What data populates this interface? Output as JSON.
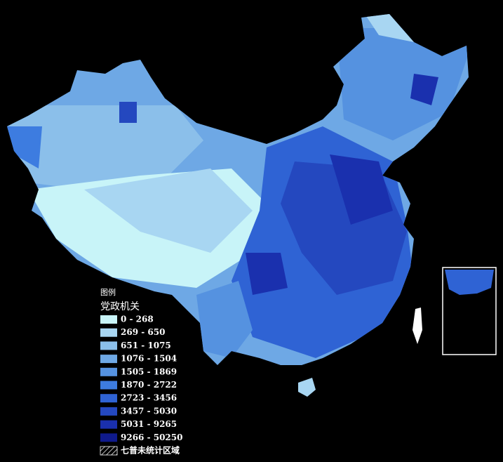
{
  "legend": {
    "heading": "图例",
    "title": "党政机关",
    "items": [
      {
        "label": "0 - 268",
        "color": "#c8f4f8"
      },
      {
        "label": "269 - 650",
        "color": "#a8d6f2"
      },
      {
        "label": "651 - 1075",
        "color": "#8bbfea"
      },
      {
        "label": "1076 - 1504",
        "color": "#6ea8e5"
      },
      {
        "label": "1505 - 1869",
        "color": "#5592e0"
      },
      {
        "label": "1870 - 2722",
        "color": "#3d7ce0"
      },
      {
        "label": "2723 - 3456",
        "color": "#2f63d4"
      },
      {
        "label": "3457 - 5030",
        "color": "#2448bf"
      },
      {
        "label": "5031 - 9265",
        "color": "#1a30ae"
      },
      {
        "label": "9266 - 50250",
        "color": "#0f1a8c"
      }
    ],
    "no_data": "七普未统计区域"
  }
}
